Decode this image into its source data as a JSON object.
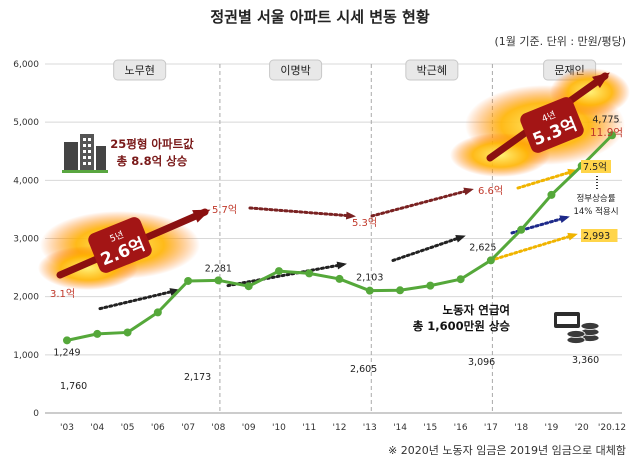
{
  "chart_data": {
    "type": "line",
    "title": "정권별 서울 아파트 시세 변동 현황",
    "unit_note": "(1월 기준. 단위 : 만원/평당)",
    "footnote": "※ 2020년 노동자 임금은 2019년 임금으로 대체함",
    "categories": [
      "'03",
      "'04",
      "'05",
      "'06",
      "'07",
      "'08",
      "'09",
      "'10",
      "'11",
      "'12",
      "'13",
      "'14",
      "'15",
      "'16",
      "'17",
      "'18",
      "'19",
      "'20",
      "'20.12"
    ],
    "ylim": [
      0,
      6000
    ],
    "yticks": [
      0,
      1000,
      2000,
      3000,
      4000,
      5000,
      6000
    ],
    "grid": true,
    "series": [
      {
        "kind": "apartment_price",
        "color": "#55a83a",
        "values": [
          1249,
          1360,
          1385,
          1730,
          2270,
          2281,
          2180,
          2440,
          2400,
          2305,
          2103,
          2110,
          2190,
          2300,
          2625,
          3150,
          3750,
          4250,
          4775
        ],
        "labels": [
          {
            "index": 0,
            "text": "1,249"
          },
          {
            "index": 5,
            "text": "2,281"
          },
          {
            "index": 10,
            "text": "2,103"
          },
          {
            "index": 14,
            "text": "2,625"
          },
          {
            "index": 18,
            "text": "4,775"
          }
        ]
      }
    ],
    "wage_points": [
      {
        "index": 0,
        "value": 1760,
        "text": "1,760"
      },
      {
        "index": 4,
        "value": 2173,
        "text": "2,173"
      },
      {
        "index": 9,
        "value": 2605,
        "text": "2,605"
      },
      {
        "index": 13,
        "value": 3096,
        "text": "3,096"
      },
      {
        "index": 17,
        "value": 3360,
        "text": "3,360"
      }
    ],
    "price_25py": [
      {
        "text": "3.1억"
      },
      {
        "text": "5.7억"
      },
      {
        "text": "5.3억"
      },
      {
        "text": "6.6억"
      },
      {
        "text": "11.9억"
      }
    ],
    "projection": [
      {
        "text": "7.5억"
      },
      {
        "text": "2,993"
      }
    ],
    "presidents": [
      "노무현",
      "이명박",
      "박근혜",
      "문재인"
    ],
    "period_increase": [
      {
        "years": "5년",
        "amount": "2.6억"
      },
      {
        "years": "4년",
        "amount": "5.3억"
      }
    ],
    "annotations": {
      "apartment_line1": "25평형 아파트값",
      "apartment_line2": "총 8.8억 상승",
      "wage_line1": "노동자 연급여",
      "wage_line2": "총 1,600만원 상승",
      "projection_line1": "정부상승률",
      "projection_line2": "14% 적용시"
    },
    "colors": {
      "apartment_line": "#55a83a",
      "price_arrow": "#7a2222",
      "wage_arrow": "#222222",
      "wage_arrow_recent": "#1e2a8a",
      "projection": "#f0b400",
      "president_box": "#e8e8e8",
      "fire_arrow": "#8b1010",
      "highlight_text": "#c0392b"
    }
  }
}
